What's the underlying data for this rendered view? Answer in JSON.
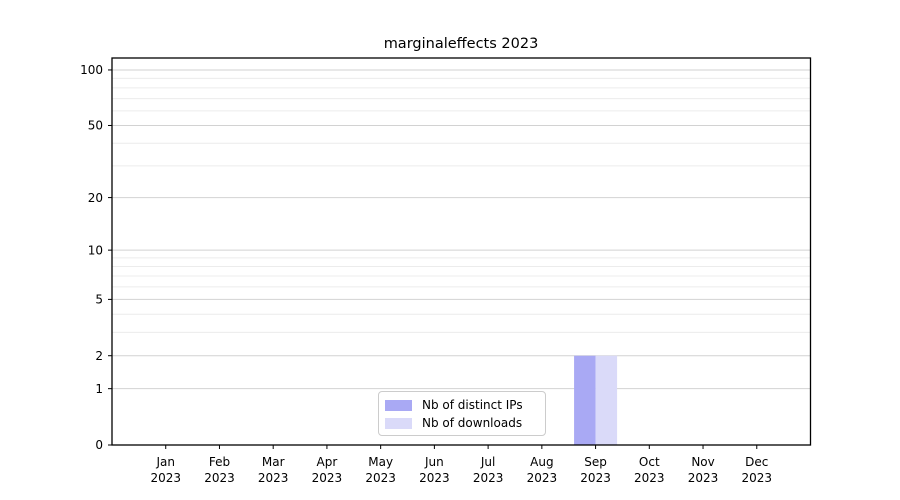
{
  "chart_data": {
    "type": "bar",
    "title": "marginaleffects 2023",
    "categories": [
      "Jan 2023",
      "Feb 2023",
      "Mar 2023",
      "Apr 2023",
      "May 2023",
      "Jun 2023",
      "Jul 2023",
      "Aug 2023",
      "Sep 2023",
      "Oct 2023",
      "Nov 2023",
      "Dec 2023"
    ],
    "x_axis": {
      "tick_months": [
        "Jan",
        "Feb",
        "Mar",
        "Apr",
        "May",
        "Jun",
        "Jul",
        "Aug",
        "Sep",
        "Oct",
        "Nov",
        "Dec"
      ],
      "tick_year": "2023"
    },
    "y_axis": {
      "scale": "log1p",
      "major_ticks": [
        0,
        1,
        2,
        5,
        10,
        20,
        50,
        100
      ],
      "minor_gridlines": [
        3,
        4,
        6,
        7,
        8,
        9,
        30,
        40,
        60,
        70,
        80,
        90
      ],
      "ylim_top": 116
    },
    "series": [
      {
        "name": "Nb of distinct IPs",
        "color": "#a9a9f4",
        "values": [
          0,
          0,
          0,
          0,
          0,
          0,
          0,
          0,
          2,
          0,
          0,
          0
        ]
      },
      {
        "name": "Nb of downloads",
        "color": "#dadaf9",
        "values": [
          0,
          0,
          0,
          0,
          0,
          0,
          0,
          0,
          2,
          0,
          0,
          0
        ]
      }
    ],
    "legend": {
      "position": "lower-center-inside"
    },
    "grid": true,
    "colors": {
      "spine": "#000000",
      "major_grid": "#d2d2d2",
      "minor_grid": "#ececec",
      "tick_label": "#000000"
    }
  }
}
